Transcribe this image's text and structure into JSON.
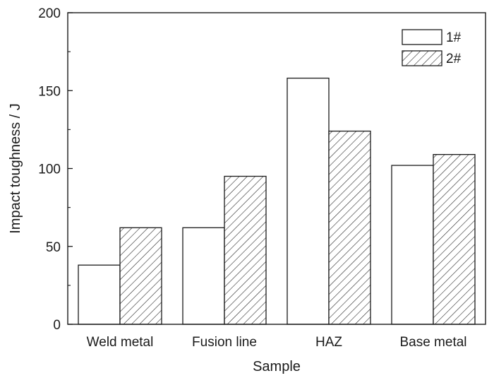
{
  "chart_data": {
    "type": "bar",
    "categories": [
      "Weld metal",
      "Fusion line",
      "HAZ",
      "Base metal"
    ],
    "series": [
      {
        "name": "1#",
        "values": [
          38,
          62,
          158,
          102
        ],
        "fill": "plain"
      },
      {
        "name": "2#",
        "values": [
          62,
          95,
          124,
          109
        ],
        "fill": "hatched"
      }
    ],
    "xlabel": "Sample",
    "ylabel": "Impact toughness / J",
    "ylim": [
      0,
      200
    ],
    "yticks": [
      0,
      50,
      100,
      150,
      200
    ],
    "grid": false,
    "legend_position": "top-right",
    "colors": {
      "stroke": "#1a1a1a",
      "background": "#ffffff"
    }
  }
}
